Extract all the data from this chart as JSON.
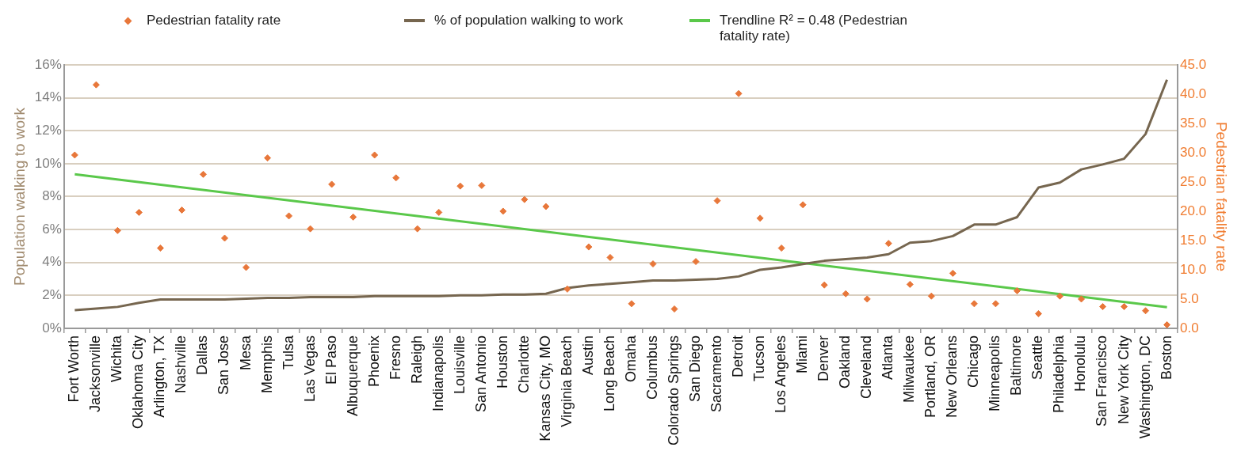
{
  "chart_data": {
    "type": "line",
    "categories": [
      "Fort Worth",
      "Jacksonville",
      "Wichita",
      "Oklahoma City",
      "Arlington, TX",
      "Nashville",
      "Dallas",
      "San Jose",
      "Mesa",
      "Memphis",
      "Tulsa",
      "Las Vegas",
      "El Paso",
      "Albuquerque",
      "Phoenix",
      "Fresno",
      "Raleigh",
      "Indianapolis",
      "Louisville",
      "San Antonio",
      "Houston",
      "Charlotte",
      "Kansas City, MO",
      "Virginia Beach",
      "Austin",
      "Long Beach",
      "Omaha",
      "Columbus",
      "Colorado Springs",
      "San Diego",
      "Sacramento",
      "Detroit",
      "Tucson",
      "Los Angeles",
      "Miami",
      "Denver",
      "Oakland",
      "Cleveland",
      "Atlanta",
      "Milwaukee",
      "Portland, OR",
      "New Orleans",
      "Chicago",
      "Minneapolis",
      "Baltimore",
      "Seattle",
      "Philadelphia",
      "Honolulu",
      "San Francisco",
      "New York City",
      "Washington, DC",
      "Boston"
    ],
    "series": [
      {
        "name": "Pedestrian fatality rate",
        "type": "scatter",
        "marker": "diamond",
        "axis": "y2",
        "color": "#e8773a",
        "values": [
          29.6,
          41.6,
          16.7,
          19.8,
          13.7,
          20.2,
          26.3,
          15.4,
          10.4,
          29.1,
          19.2,
          17.0,
          24.6,
          19.0,
          29.6,
          25.7,
          17.0,
          19.8,
          24.3,
          24.4,
          20.0,
          22.0,
          20.8,
          6.7,
          13.9,
          12.1,
          4.2,
          11.0,
          3.3,
          11.4,
          21.8,
          40.1,
          18.8,
          13.7,
          21.1,
          7.4,
          5.9,
          5.0,
          14.5,
          7.5,
          5.5,
          9.4,
          4.2,
          4.2,
          6.4,
          2.5,
          5.5,
          5.0,
          3.7,
          3.7,
          3.0,
          0.6
        ]
      },
      {
        "name": "% of population walking to work",
        "color": "#76664f",
        "values": [
          1.1,
          1.2,
          1.3,
          1.55,
          1.75,
          1.75,
          1.75,
          1.75,
          1.8,
          1.85,
          1.85,
          1.9,
          1.9,
          1.9,
          1.95,
          1.95,
          1.95,
          1.95,
          2.0,
          2.0,
          2.05,
          2.05,
          2.1,
          2.45,
          2.6,
          2.7,
          2.8,
          2.9,
          2.9,
          2.95,
          3.0,
          3.15,
          3.55,
          3.7,
          3.9,
          4.1,
          4.2,
          4.3,
          4.5,
          5.2,
          5.3,
          5.6,
          6.3,
          6.3,
          6.75,
          8.55,
          8.85,
          9.65,
          9.95,
          10.3,
          11.8,
          15.1
        ]
      },
      {
        "name": "Trendline R² = 0.48 (Pedestrian fatality rate)",
        "axis": "y2",
        "color": "#5ac84a",
        "x": [
          "Fort Worth",
          "Boston"
        ],
        "values": [
          26.3,
          3.6
        ]
      }
    ],
    "ylabel": "Population walking to work",
    "y2label": "Pedestrian fatality rate",
    "ylim": [
      0,
      16
    ],
    "yticks": [
      {
        "value": 0,
        "label": "0%"
      },
      {
        "value": 2,
        "label": "2%"
      },
      {
        "value": 4,
        "label": "4%"
      },
      {
        "value": 6,
        "label": "6%"
      },
      {
        "value": 8,
        "label": "8%"
      },
      {
        "value": 10,
        "label": "10%"
      },
      {
        "value": 12,
        "label": "12%"
      },
      {
        "value": 14,
        "label": "14%"
      },
      {
        "value": 16,
        "label": "16%"
      }
    ],
    "y2lim": [
      0,
      45
    ],
    "y2ticks": [
      {
        "value": 0,
        "label": "0.0"
      },
      {
        "value": 5,
        "label": "5.0"
      },
      {
        "value": 10,
        "label": "10.0"
      },
      {
        "value": 15,
        "label": "15.0"
      },
      {
        "value": 20,
        "label": "20.0"
      },
      {
        "value": 25,
        "label": "25.0"
      },
      {
        "value": 30,
        "label": "30.0"
      },
      {
        "value": 35,
        "label": "35.0"
      },
      {
        "value": 40,
        "label": "40.0"
      },
      {
        "value": 45,
        "label": "45.0"
      }
    ],
    "grid": "y",
    "legend": "top",
    "line_style": "solid"
  }
}
